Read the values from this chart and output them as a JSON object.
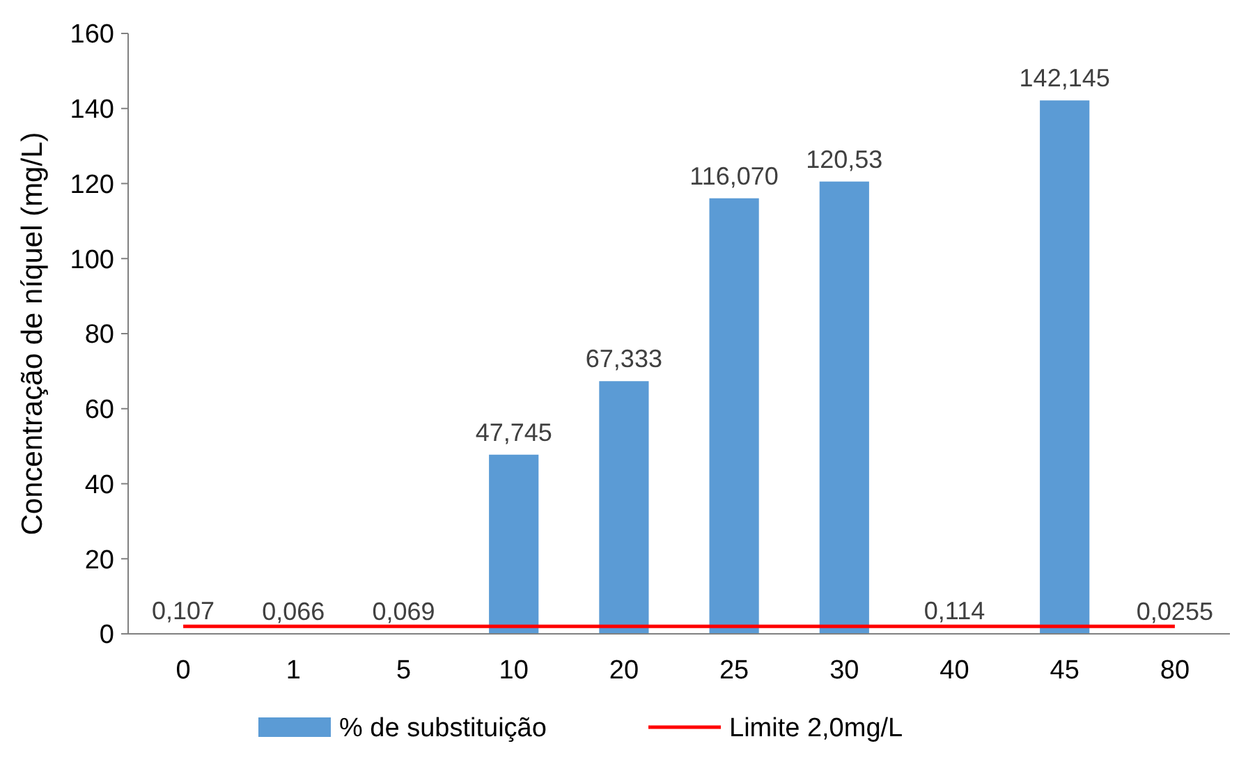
{
  "chart_data": {
    "type": "bar",
    "ylabel": "Concentração de níquel (mg/L)",
    "categories": [
      "0",
      "1",
      "5",
      "10",
      "20",
      "25",
      "30",
      "40",
      "45",
      "80"
    ],
    "series": [
      {
        "name": "% de substituição",
        "color": "#5b9bd5",
        "values": [
          0.107,
          0.066,
          0.069,
          47.745,
          67.333,
          116.07,
          120.53,
          0.114,
          142.145,
          0.0255
        ],
        "value_labels": [
          "0,107",
          "0,066",
          "0,069",
          "47,745",
          "67,333",
          "116,070",
          "120,53",
          "0,114",
          "142,145",
          "0,0255"
        ]
      },
      {
        "name": "Limite 2,0mg/L",
        "type": "line",
        "color": "#ff0000",
        "values": [
          2,
          2,
          2,
          2,
          2,
          2,
          2,
          2,
          2,
          2
        ]
      }
    ],
    "ylim": [
      0,
      160
    ],
    "yticks": [
      0,
      20,
      40,
      60,
      80,
      100,
      120,
      140,
      160
    ],
    "grid": false,
    "legend": "bottom"
  }
}
